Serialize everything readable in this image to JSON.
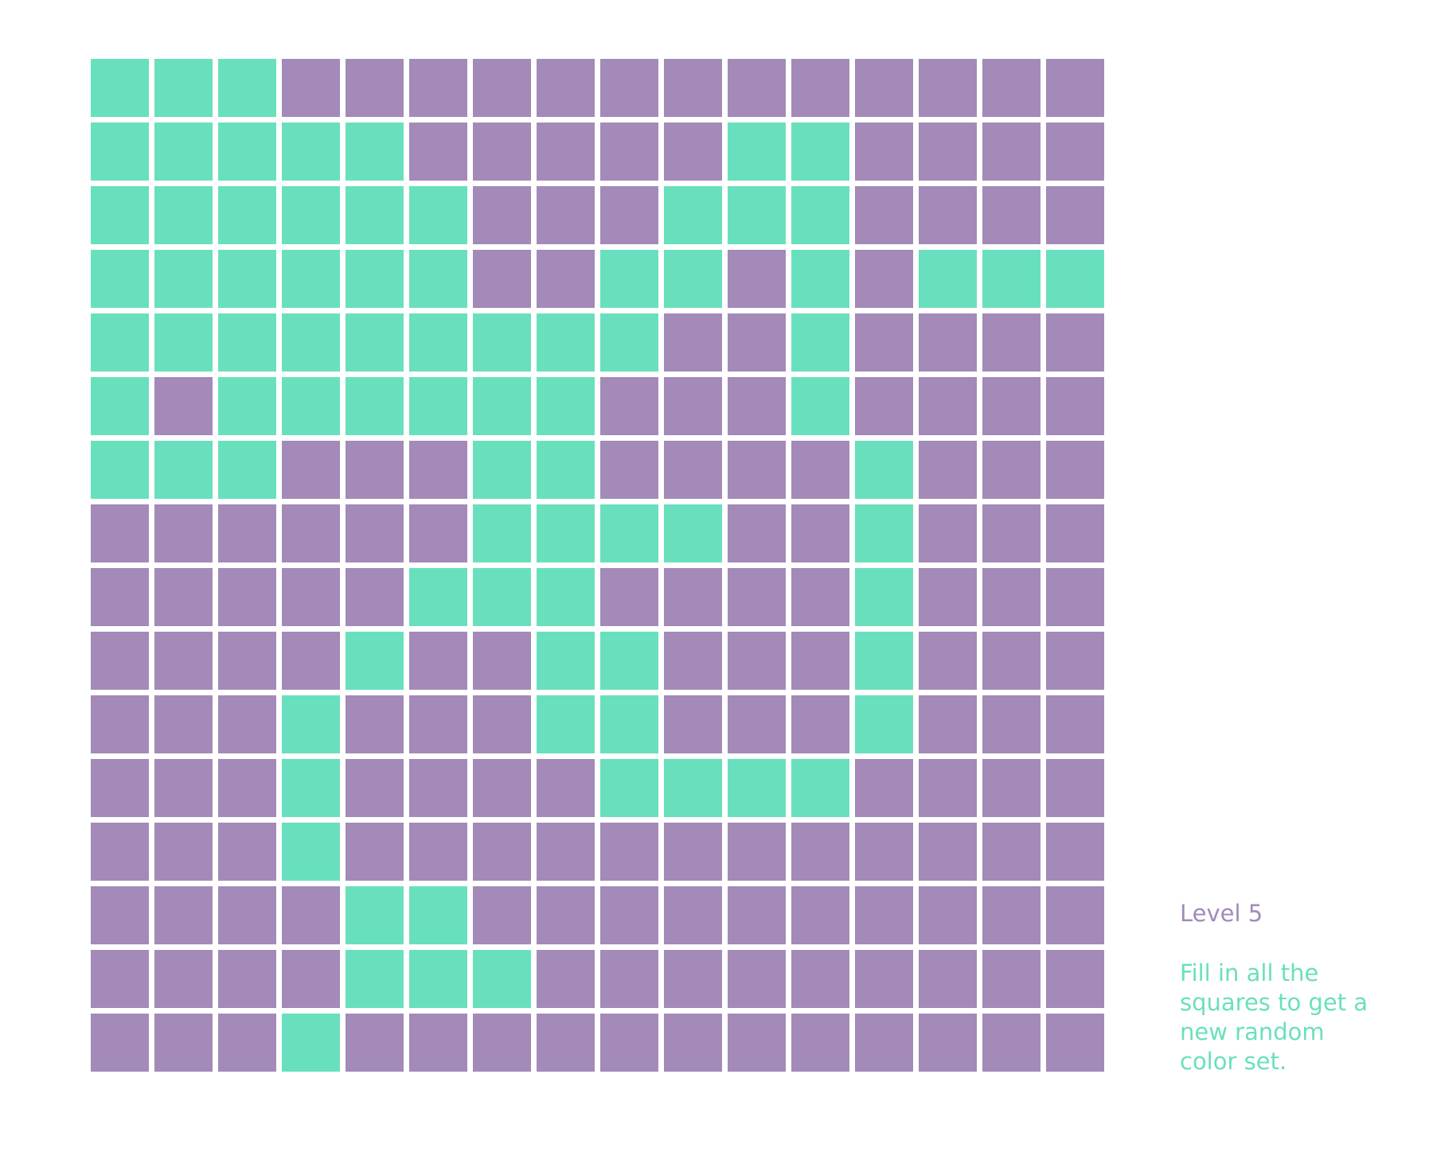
{
  "colors": {
    "filled": "#69e0bd",
    "empty": "#a38ab9"
  },
  "level_label": "Level 5",
  "instructions": "Fill in all the squares to get a new random color set.",
  "grid": {
    "rows": [
      "1110000000000000",
      "1111100000110000",
      "1111110001110000",
      "1111110011010111",
      "1111111110010000",
      "1011111100010000",
      "1110001100001000",
      "0000001111001000",
      "0000011100001000",
      "0000100110001000",
      "0001000110001000",
      "0001000011110000",
      "0001000000000000",
      "0000110000000000",
      "0000111000000000",
      "0001000000000000"
    ]
  }
}
